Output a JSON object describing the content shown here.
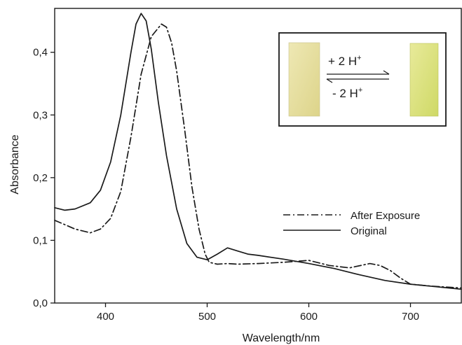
{
  "chart_data": {
    "type": "line",
    "xlabel": "Wavelength/nm",
    "ylabel": "Absorbance",
    "xlim": [
      350,
      750
    ],
    "ylim": [
      0.0,
      0.47
    ],
    "x_ticks": [
      "400",
      "500",
      "600",
      "700"
    ],
    "y_ticks": [
      "0,0",
      "0,1",
      "0,2",
      "0,3",
      "0,4"
    ],
    "grid": false,
    "legend_position": "center-right",
    "series": [
      {
        "name": "After Exposure",
        "style": "dash-dot",
        "color": "#1a1a1a",
        "x": [
          350,
          370,
          385,
          395,
          405,
          415,
          425,
          435,
          445,
          455,
          460,
          465,
          470,
          478,
          485,
          492,
          498,
          502,
          510,
          520,
          530,
          550,
          575,
          600,
          620,
          640,
          660,
          670,
          680,
          690,
          700,
          720,
          740,
          750
        ],
        "y": [
          0.132,
          0.118,
          0.112,
          0.118,
          0.135,
          0.178,
          0.265,
          0.365,
          0.425,
          0.445,
          0.44,
          0.415,
          0.37,
          0.275,
          0.185,
          0.118,
          0.078,
          0.065,
          0.062,
          0.063,
          0.062,
          0.063,
          0.065,
          0.068,
          0.06,
          0.056,
          0.063,
          0.06,
          0.052,
          0.04,
          0.03,
          0.027,
          0.025,
          0.024
        ]
      },
      {
        "name": "Original",
        "style": "solid",
        "color": "#1a1a1a",
        "x": [
          350,
          360,
          370,
          385,
          395,
          405,
          415,
          425,
          430,
          435,
          440,
          445,
          452,
          460,
          470,
          480,
          490,
          500,
          510,
          520,
          530,
          540,
          550,
          575,
          600,
          625,
          650,
          675,
          700,
          725,
          750
        ],
        "y": [
          0.152,
          0.148,
          0.15,
          0.16,
          0.18,
          0.225,
          0.3,
          0.4,
          0.445,
          0.462,
          0.45,
          0.405,
          0.32,
          0.235,
          0.15,
          0.095,
          0.073,
          0.069,
          0.078,
          0.088,
          0.083,
          0.078,
          0.076,
          0.07,
          0.063,
          0.055,
          0.045,
          0.036,
          0.03,
          0.026,
          0.022
        ]
      }
    ],
    "inset": {
      "forward_label": "+ 2 H",
      "reverse_label": "- 2 H",
      "superscript": "+",
      "left_sample_color": "#e6df9e",
      "right_sample_color": "#dde47c"
    }
  }
}
